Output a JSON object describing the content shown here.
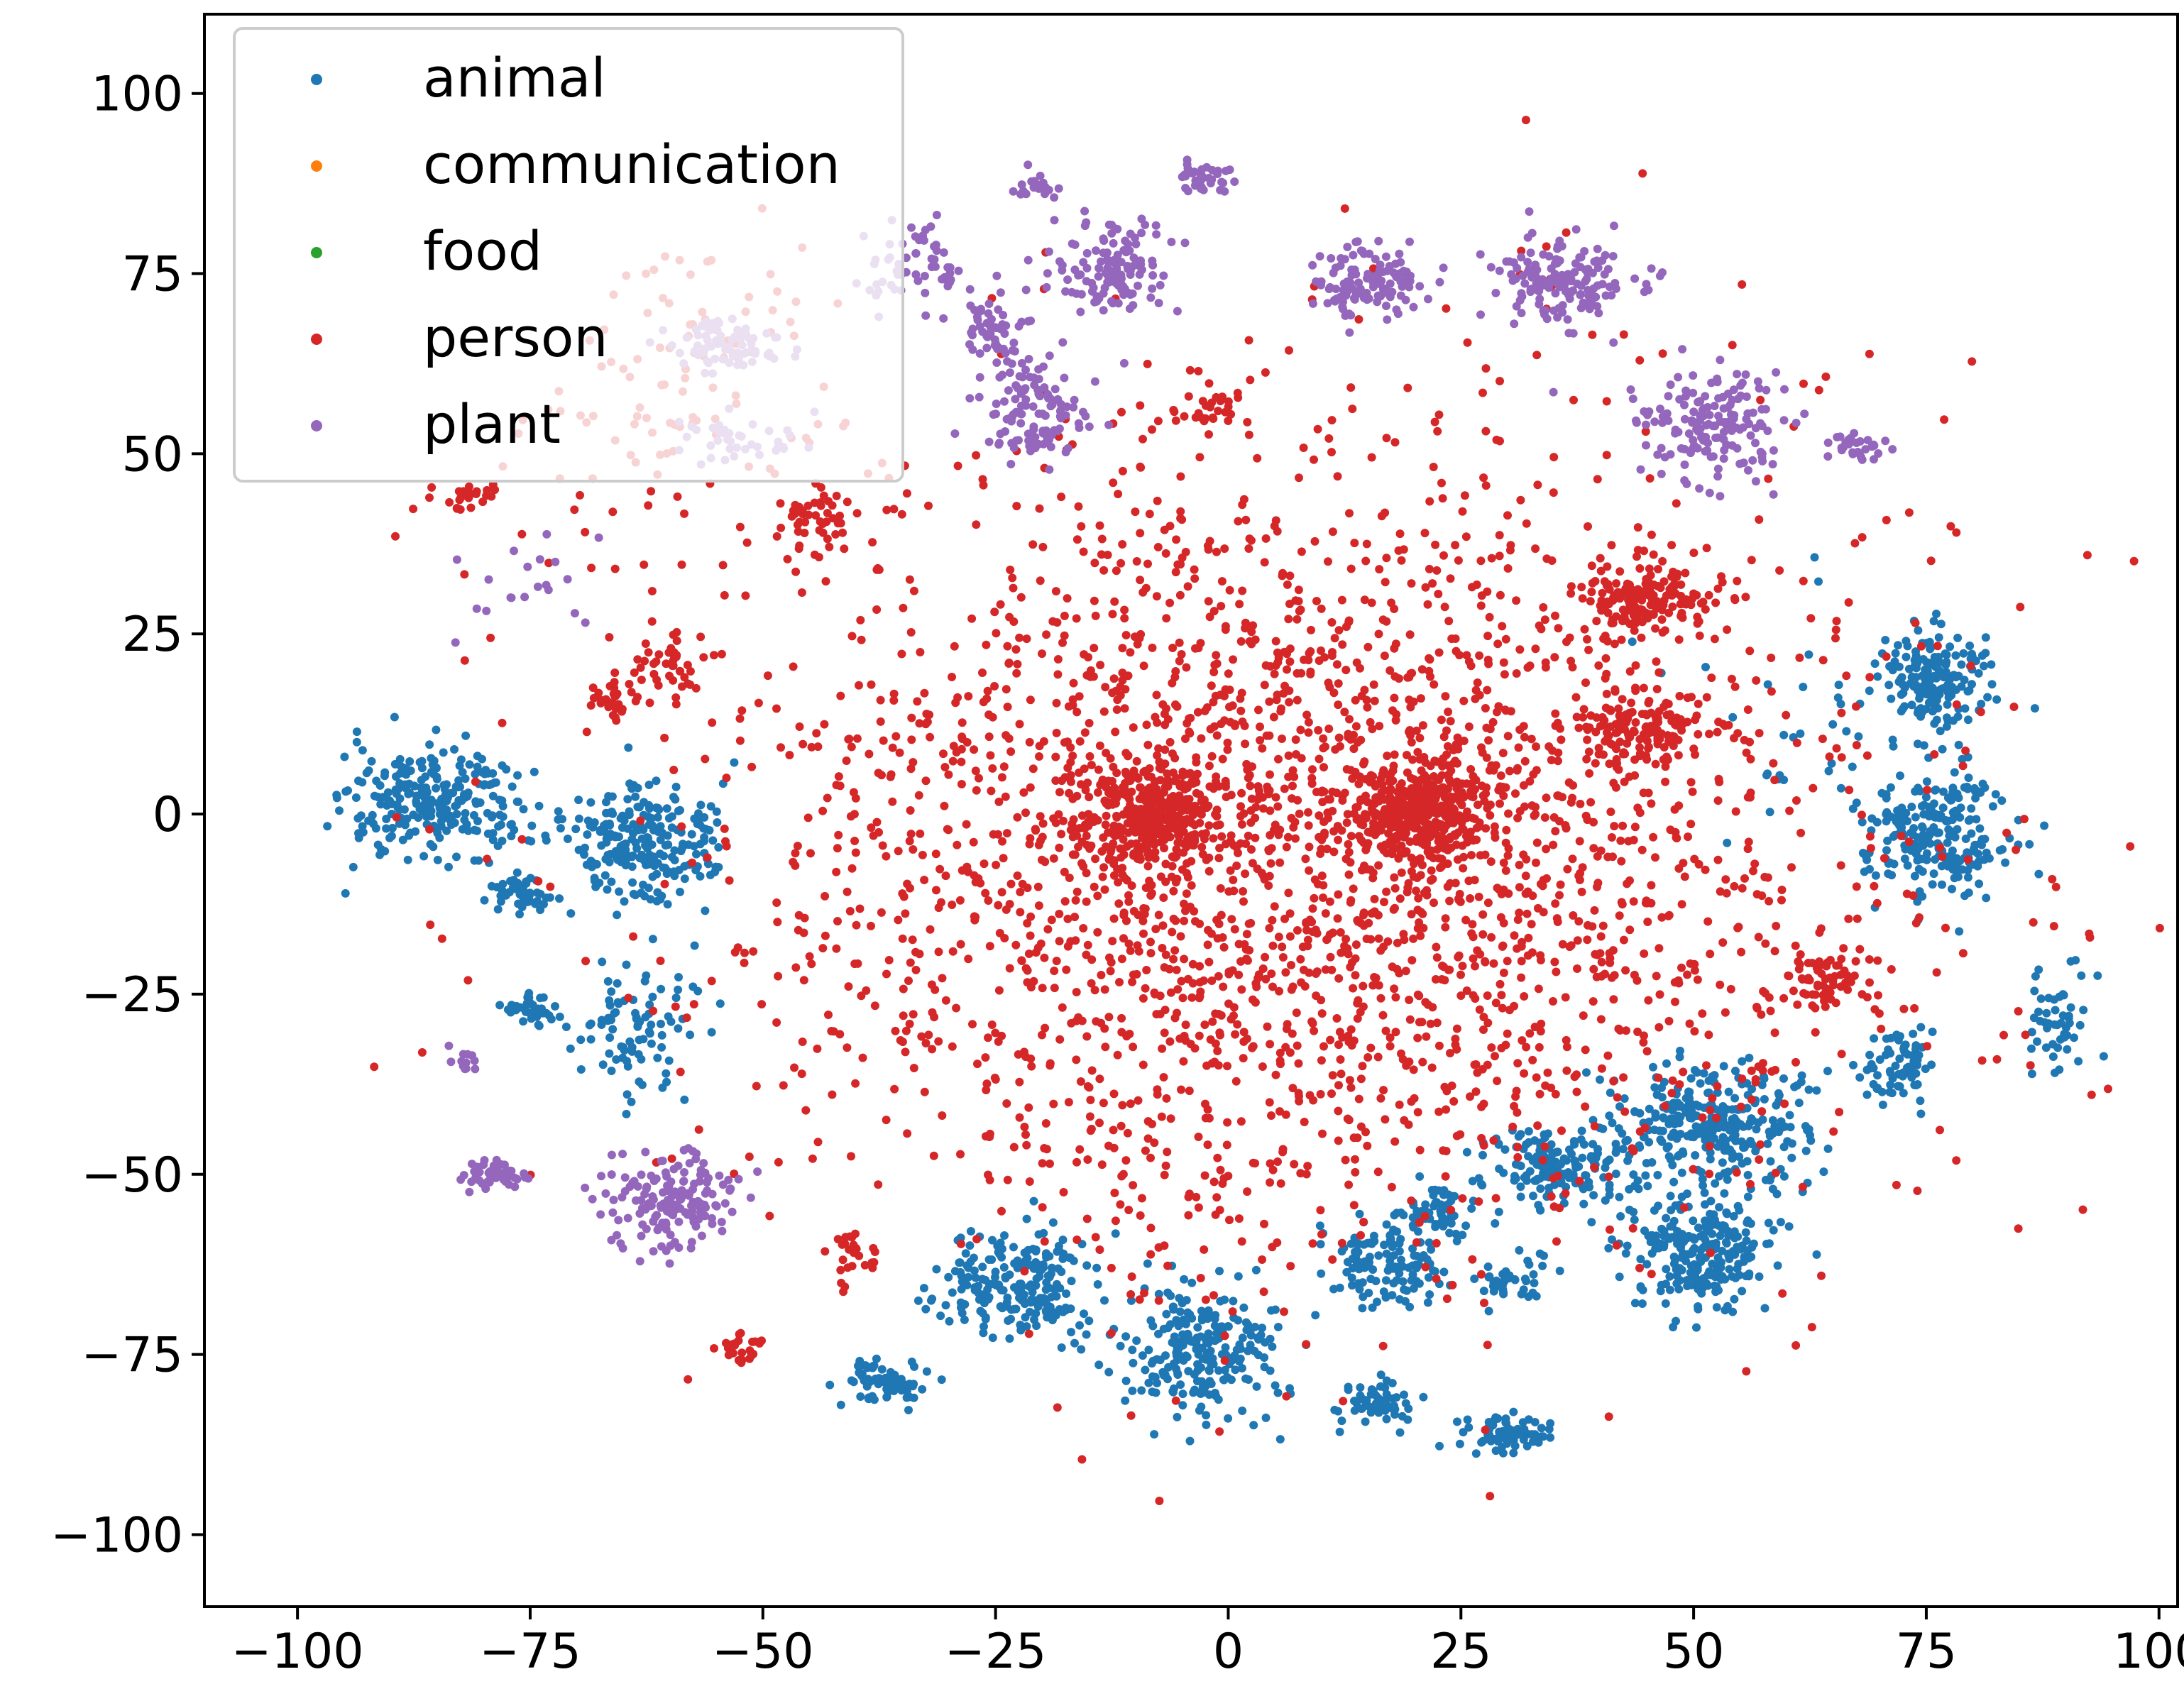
{
  "chart_data": {
    "type": "scatter",
    "title": "",
    "xlabel": "",
    "ylabel": "",
    "xlim": [
      -110,
      102
    ],
    "ylim": [
      -110,
      111
    ],
    "grid": false,
    "legend_position": "top-left",
    "xticks": [
      -100,
      -75,
      -50,
      -25,
      0,
      25,
      50,
      75,
      100
    ],
    "yticks": [
      100,
      75,
      50,
      25,
      0,
      -25,
      -50,
      -75,
      -100
    ],
    "xtick_labels": [
      "−100",
      "−75",
      "−50",
      "−25",
      "0",
      "25",
      "50",
      "75",
      "100"
    ],
    "ytick_labels": [
      "100",
      "75",
      "50",
      "25",
      "0",
      "−25",
      "−50",
      "−75",
      "−100"
    ],
    "series": [
      {
        "name": "animal",
        "color": "#1f77b4",
        "clusters": [
          {
            "cx": -85,
            "cy": 1,
            "sx": 5,
            "sy": 4,
            "n": 260
          },
          {
            "cx": -63,
            "cy": -4,
            "sx": 4,
            "sy": 4,
            "n": 240
          },
          {
            "cx": -76,
            "cy": -11,
            "sx": 2,
            "sy": 1.5,
            "n": 50
          },
          {
            "cx": -75,
            "cy": -27,
            "sx": 1.5,
            "sy": 1.2,
            "n": 45
          },
          {
            "cx": -64,
            "cy": -30,
            "sx": 3,
            "sy": 4,
            "n": 90
          },
          {
            "cx": -37,
            "cy": -79,
            "sx": 2,
            "sy": 1.5,
            "n": 70
          },
          {
            "cx": -22,
            "cy": -65,
            "sx": 4,
            "sy": 4,
            "n": 220
          },
          {
            "cx": -3,
            "cy": -74,
            "sx": 4,
            "sy": 5,
            "n": 240
          },
          {
            "cx": 17,
            "cy": -62,
            "sx": 3,
            "sy": 3,
            "n": 120
          },
          {
            "cx": 22,
            "cy": -55,
            "sx": 2,
            "sy": 2,
            "n": 60
          },
          {
            "cx": 16,
            "cy": -82,
            "sx": 2,
            "sy": 2,
            "n": 60
          },
          {
            "cx": 30,
            "cy": -86,
            "sx": 2.5,
            "sy": 1.5,
            "n": 70
          },
          {
            "cx": 30,
            "cy": -65,
            "sx": 2,
            "sy": 1.5,
            "n": 40
          },
          {
            "cx": 35,
            "cy": -49,
            "sx": 4,
            "sy": 3,
            "n": 160
          },
          {
            "cx": 52,
            "cy": -43,
            "sx": 5,
            "sy": 4,
            "n": 300
          },
          {
            "cx": 51,
            "cy": -61,
            "sx": 4,
            "sy": 4,
            "n": 240
          },
          {
            "cx": 76,
            "cy": 19,
            "sx": 3,
            "sy": 3,
            "n": 160
          },
          {
            "cx": 76,
            "cy": -3,
            "sx": 4,
            "sy": 4,
            "n": 220
          },
          {
            "cx": 72,
            "cy": -35,
            "sx": 2,
            "sy": 2.5,
            "n": 70
          },
          {
            "cx": 89,
            "cy": -28,
            "sx": 1.5,
            "sy": 3,
            "n": 50
          },
          {
            "cx": 68,
            "cy": 10,
            "sx": 8,
            "sy": 10,
            "n": 60
          }
        ]
      },
      {
        "name": "communication",
        "color": "#ff7f0e",
        "clusters": []
      },
      {
        "name": "food",
        "color": "#2ca02c",
        "clusters": []
      },
      {
        "name": "person",
        "color": "#d62728",
        "clusters": [
          {
            "cx": 8,
            "cy": -5,
            "sx": 30,
            "sy": 28,
            "n": 2700
          },
          {
            "cx": -8,
            "cy": 0,
            "sx": 4,
            "sy": 3.5,
            "n": 350
          },
          {
            "cx": 20,
            "cy": 0,
            "sx": 4,
            "sy": 3.5,
            "n": 350
          },
          {
            "cx": 44,
            "cy": 30,
            "sx": 3,
            "sy": 2.5,
            "n": 140
          },
          {
            "cx": 44,
            "cy": 12,
            "sx": 3,
            "sy": 2.5,
            "n": 120
          },
          {
            "cx": -2,
            "cy": 56,
            "sx": 2,
            "sy": 1.5,
            "n": 30
          },
          {
            "cx": -45,
            "cy": 41,
            "sx": 2,
            "sy": 2,
            "n": 40
          },
          {
            "cx": -60,
            "cy": 21,
            "sx": 2,
            "sy": 2,
            "n": 40
          },
          {
            "cx": -66,
            "cy": 16,
            "sx": 1.5,
            "sy": 1.5,
            "n": 30
          },
          {
            "cx": 64,
            "cy": -24,
            "sx": 2.5,
            "sy": 2.5,
            "n": 70
          },
          {
            "cx": -52,
            "cy": -74,
            "sx": 1.2,
            "sy": 1.2,
            "n": 25
          },
          {
            "cx": -40,
            "cy": -61,
            "sx": 1.5,
            "sy": 1.5,
            "n": 25
          },
          {
            "cx": -82,
            "cy": 44,
            "sx": 2,
            "sy": 1,
            "n": 25
          },
          {
            "cx": -60,
            "cy": 60,
            "sx": 10,
            "sy": 12,
            "n": 120
          },
          {
            "cx": 5,
            "cy": 5,
            "sx": 60,
            "sy": 55,
            "n": 180
          }
        ]
      },
      {
        "name": "plant",
        "color": "#9467bd",
        "clusters": [
          {
            "cx": -3,
            "cy": 88,
            "sx": 1.5,
            "sy": 1.2,
            "n": 40
          },
          {
            "cx": -21,
            "cy": 87,
            "sx": 1,
            "sy": 1,
            "n": 20
          },
          {
            "cx": -13,
            "cy": 76,
            "sx": 3,
            "sy": 3,
            "n": 130
          },
          {
            "cx": 15,
            "cy": 74,
            "sx": 3,
            "sy": 2.5,
            "n": 120
          },
          {
            "cx": 36,
            "cy": 74,
            "sx": 4,
            "sy": 3,
            "n": 150
          },
          {
            "cx": -25,
            "cy": 66,
            "sx": 2,
            "sy": 2.5,
            "n": 60
          },
          {
            "cx": -21,
            "cy": 56,
            "sx": 3,
            "sy": 3,
            "n": 110
          },
          {
            "cx": -33,
            "cy": 76,
            "sx": 3,
            "sy": 3,
            "n": 60
          },
          {
            "cx": 52,
            "cy": 54,
            "sx": 4,
            "sy": 4,
            "n": 160
          },
          {
            "cx": 68,
            "cy": 51,
            "sx": 1.5,
            "sy": 1,
            "n": 30
          },
          {
            "cx": -54,
            "cy": 65,
            "sx": 3,
            "sy": 2,
            "n": 80
          },
          {
            "cx": -60,
            "cy": -54,
            "sx": 3.5,
            "sy": 3,
            "n": 160
          },
          {
            "cx": -79,
            "cy": -50,
            "sx": 2,
            "sy": 1.2,
            "n": 50
          },
          {
            "cx": -82,
            "cy": -34,
            "sx": 1,
            "sy": 1,
            "n": 12
          },
          {
            "cx": -53,
            "cy": 52,
            "sx": 3,
            "sy": 2,
            "n": 40
          },
          {
            "cx": -75,
            "cy": 32,
            "sx": 4,
            "sy": 4,
            "n": 20
          }
        ]
      }
    ]
  }
}
